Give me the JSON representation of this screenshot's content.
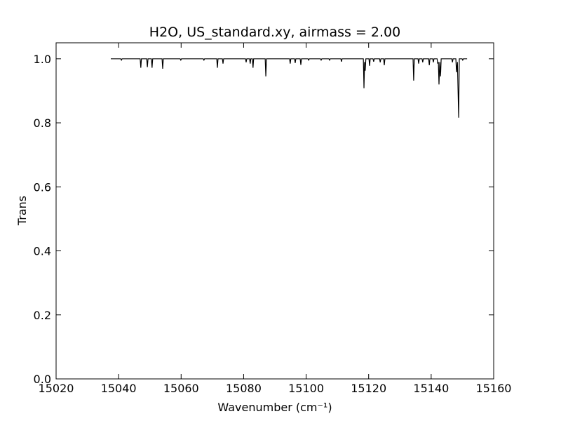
{
  "chart_data": {
    "type": "line",
    "title": "H2O, US_standard.xy, airmass = 2.00",
    "xlabel": "Wavenumber (cm⁻¹)",
    "ylabel": "Trans",
    "color": "#000000",
    "xlim": [
      15020,
      15160
    ],
    "xticks": [
      15020,
      15040,
      15060,
      15080,
      15100,
      15120,
      15140,
      15160
    ],
    "ylim": [
      0,
      1.05
    ],
    "yticks": [
      {
        "value": 0,
        "label": "0.0"
      },
      0.2,
      0.4,
      0.6,
      0.8,
      {
        "value": 1,
        "label": "1.0"
      }
    ],
    "grid": false,
    "x": [
      15037.5,
      15040.7,
      15040.9,
      15041.1,
      15046.9,
      15047.1,
      15047.3,
      15049.0,
      15049.2,
      15049.4,
      15050.5,
      15050.7,
      15050.9,
      15053.9,
      15054.1,
      15054.3,
      15059.7,
      15059.9,
      15060.1,
      15067.1,
      15067.3,
      15067.5,
      15071.4,
      15071.6,
      15071.8,
      15073.2,
      15073.4,
      15073.6,
      15080.6,
      15080.8,
      15081.0,
      15081.9,
      15082.1,
      15082.3,
      15082.8,
      15083.0,
      15083.2,
      15086.9,
      15087.1,
      15087.3,
      15094.7,
      15094.9,
      15095.1,
      15096.3,
      15096.5,
      15096.7,
      15098.1,
      15098.3,
      15098.5,
      15100.6,
      15100.8,
      15101.0,
      15104.6,
      15104.8,
      15105.0,
      15107.3,
      15107.5,
      15107.7,
      15111.1,
      15111.3,
      15111.5,
      15118.3,
      15118.5,
      15118.7,
      15118.9,
      15119.1,
      15120.1,
      15120.3,
      15120.5,
      15121.4,
      15121.6,
      15121.8,
      15123.5,
      15123.7,
      15123.9,
      15124.8,
      15125.0,
      15125.2,
      15134.2,
      15134.4,
      15134.6,
      15135.8,
      15136.0,
      15136.2,
      15137.1,
      15137.3,
      15137.5,
      15139.2,
      15139.4,
      15139.6,
      15140.5,
      15140.7,
      15140.9,
      15141.9,
      15142.1,
      15142.3,
      15142.5,
      15142.75,
      15143.0,
      15143.2,
      15146.6,
      15146.8,
      15147.0,
      15147.9,
      15148.1,
      15148.4,
      15148.8,
      15149.0,
      15149.9,
      15150.1,
      15150.3,
      15151.5
    ],
    "values": [
      1,
      1,
      0.996,
      1,
      1,
      0.972,
      1,
      1,
      0.974,
      1,
      1,
      0.972,
      1,
      1,
      0.969,
      1,
      1,
      0.996,
      1,
      1,
      0.996,
      1,
      1,
      0.972,
      1,
      1,
      0.985,
      1,
      1,
      0.989,
      1,
      1,
      0.985,
      1,
      1,
      0.972,
      1,
      1,
      0.945,
      1,
      1,
      0.985,
      1,
      1,
      0.987,
      1,
      1,
      0.981,
      1,
      1,
      0.996,
      1,
      1,
      0.996,
      1,
      1,
      0.996,
      1,
      1,
      0.991,
      1,
      1,
      0.908,
      0.99,
      0.963,
      1,
      1,
      0.978,
      1,
      1,
      0.991,
      1,
      1,
      0.989,
      1,
      1,
      0.98,
      1,
      1,
      0.932,
      1,
      1,
      0.985,
      1,
      1,
      0.989,
      1,
      1,
      0.98,
      1,
      1,
      0.989,
      1,
      1,
      0.985,
      0.99,
      0.92,
      0.99,
      0.945,
      1,
      1,
      0.989,
      1,
      1,
      0.958,
      0.99,
      0.816,
      1,
      1,
      0.996,
      1,
      1
    ]
  }
}
